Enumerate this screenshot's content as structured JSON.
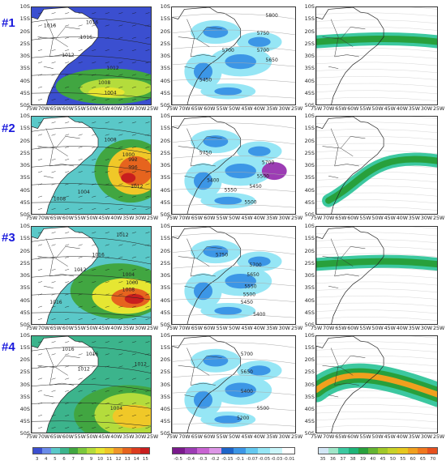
{
  "rows": [
    {
      "label": "#1"
    },
    {
      "label": "#2"
    },
    {
      "label": "#3"
    },
    {
      "label": "#4"
    }
  ],
  "lat_ticks": [
    "10S",
    "15S",
    "20S",
    "25S",
    "30S",
    "35S",
    "40S",
    "45S",
    "50S"
  ],
  "lon_ticks": [
    "75W",
    "70W",
    "65W",
    "60W",
    "55W",
    "50W",
    "45W",
    "40W",
    "35W",
    "30W",
    "25W"
  ],
  "isobars": {
    "r1": [
      "1016",
      "1016",
      "1016",
      "1012",
      "1012",
      "1008",
      "1004"
    ],
    "r2": [
      "1008",
      "1000",
      "992",
      "996",
      "1012",
      "1004",
      "1008"
    ],
    "r3": [
      "1012",
      "1016",
      "1012",
      "1004",
      "1000",
      "1008",
      "1016"
    ],
    "r4": [
      "1016",
      "1016",
      "1012",
      "1012",
      "1004"
    ]
  },
  "heights": {
    "r1": [
      "5800",
      "5750",
      "5700",
      "5700",
      "5650",
      "5450"
    ],
    "r2": [
      "5750",
      "5400",
      "5700",
      "5500",
      "5450",
      "5550",
      "5500"
    ],
    "r3": [
      "5750",
      "5700",
      "5650",
      "5550",
      "5500",
      "5450",
      "5400"
    ],
    "r4": [
      "5700",
      "5650",
      "5400",
      "5500",
      "5200"
    ]
  },
  "colorbars": {
    "wind": {
      "values": [
        "3",
        "4",
        "5",
        "6",
        "7",
        "8",
        "9",
        "10",
        "11",
        "12",
        "13",
        "14",
        "15"
      ],
      "colors": [
        "#3b4fd0",
        "#6a8ce8",
        "#5ac8c8",
        "#3cb48c",
        "#41a641",
        "#7cc83c",
        "#b4dc3c",
        "#e6e632",
        "#f0c828",
        "#f09628",
        "#e6641e",
        "#dc3c1e",
        "#c81e1e"
      ]
    },
    "omega": {
      "values": [
        "-0.5",
        "-0.4",
        "-0.3",
        "-0.2",
        "-0.15",
        "-0.1",
        "-0.07",
        "-0.05",
        "-0.03",
        "-0.01"
      ],
      "colors": [
        "#7a1a8c",
        "#9c3cb4",
        "#c864d2",
        "#dc96e6",
        "#1e64c8",
        "#3c96e6",
        "#64c8f0",
        "#96e6f5",
        "#c8f5fa",
        "#ffffff"
      ]
    },
    "ivt": {
      "values": [
        "35",
        "36",
        "37",
        "38",
        "39",
        "40",
        "45",
        "50",
        "55",
        "60",
        "65",
        "70"
      ],
      "colors": [
        "#d2e6f5",
        "#a0e6c8",
        "#3cc8a0",
        "#1eb478",
        "#28a03c",
        "#64b432",
        "#a0c828",
        "#c8d228",
        "#e6c81e",
        "#f0a01e",
        "#f0781e",
        "#e6501e"
      ]
    }
  },
  "colors": {
    "row_label": "#1a1adc",
    "coast": "#222222",
    "isobar": "#222222",
    "land_bg": "#ffffff"
  }
}
